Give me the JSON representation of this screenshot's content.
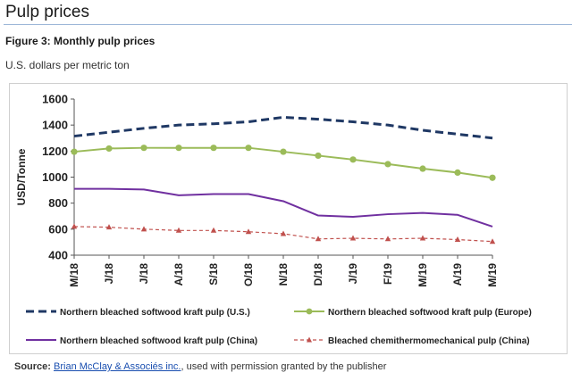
{
  "heading": "Pulp prices",
  "figure_title": "Figure 3: Monthly pulp prices",
  "units": "U.S. dollars per metric ton",
  "source": {
    "label": "Source:",
    "link_text": "Brian McClay & Associés inc.",
    "rest": ", used with permission granted by the publisher"
  },
  "chart_data": {
    "type": "line",
    "title": "",
    "ylabel": "USD/Tonne",
    "xlabel": "",
    "ylim": [
      400,
      1600
    ],
    "yticks": [
      400,
      600,
      800,
      1000,
      1200,
      1400,
      1600
    ],
    "categories": [
      "M/18",
      "J/18",
      "J/18",
      "A/18",
      "S/18",
      "O/18",
      "N/18",
      "D/18",
      "J/19",
      "F/19",
      "M/19",
      "A/19",
      "M/19"
    ],
    "legend_position": "bottom",
    "series": [
      {
        "name": "Northern bleached softwood kraft pulp (U.S.)",
        "color": "#1f3864",
        "style": "dashed",
        "marker": "none",
        "values": [
          1315,
          1345,
          1375,
          1400,
          1410,
          1425,
          1460,
          1445,
          1425,
          1400,
          1360,
          1330,
          1300
        ]
      },
      {
        "name": "Northern bleached softwood kraft pulp (Europe)",
        "color": "#9bbb59",
        "style": "solid",
        "marker": "circle",
        "values": [
          1195,
          1220,
          1225,
          1225,
          1225,
          1225,
          1195,
          1165,
          1135,
          1100,
          1065,
          1035,
          995
        ]
      },
      {
        "name": "Northern bleached softwood kraft pulp (China)",
        "color": "#7030a0",
        "style": "solid",
        "marker": "none",
        "values": [
          910,
          910,
          905,
          860,
          870,
          870,
          815,
          705,
          695,
          715,
          725,
          710,
          620
        ]
      },
      {
        "name": "Bleached chemithermomechanical pulp (China)",
        "color": "#c0504d",
        "style": "dashed-thin",
        "marker": "triangle",
        "values": [
          620,
          615,
          600,
          590,
          590,
          580,
          565,
          525,
          530,
          525,
          530,
          520,
          505
        ]
      }
    ]
  }
}
